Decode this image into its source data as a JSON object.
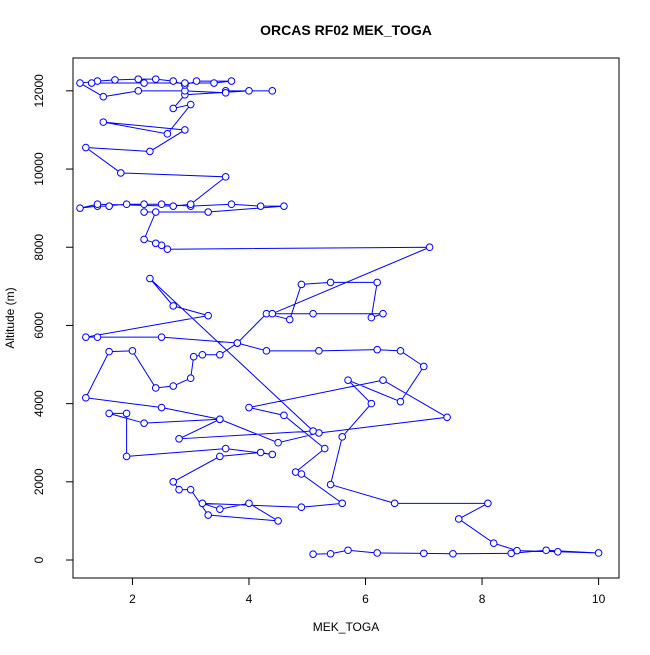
{
  "chart_data": {
    "type": "line",
    "markers": true,
    "title": "ORCAS RF02 MEK_TOGA",
    "xlabel": "MEK_TOGA",
    "ylabel": "Altitude (m)",
    "color": "#0000ff",
    "x": [
      5.1,
      5.4,
      5.7,
      6.2,
      7.0,
      7.5,
      8.5,
      9.1,
      10.0,
      9.3,
      8.6,
      8.2,
      7.6,
      8.1,
      6.5,
      5.4,
      5.6,
      6.1,
      5.7,
      6.6,
      7.0,
      6.6,
      6.2,
      5.2,
      4.3,
      3.8,
      3.5,
      3.2,
      3.05,
      3.0,
      2.7,
      2.4,
      2.0,
      1.6,
      1.2,
      2.5,
      3.5,
      4.5,
      5.2,
      7.4,
      6.3,
      4.0,
      4.6,
      5.3,
      4.8,
      4.9,
      5.6,
      4.9,
      3.2,
      3.5,
      4.0,
      4.5,
      3.3,
      3.0,
      2.8,
      2.7,
      3.5,
      4.2,
      4.4,
      3.6,
      1.9,
      1.9,
      1.6,
      2.2,
      3.5,
      2.8,
      5.1,
      2.3,
      2.7,
      3.3,
      1.2,
      1.4,
      2.5,
      3.8,
      4.3,
      4.7,
      4.9,
      5.4,
      6.2,
      6.1,
      6.3,
      5.1,
      4.4,
      7.1,
      2.6,
      2.5,
      2.4,
      2.2,
      2.4,
      2.2,
      3.3,
      4.6,
      4.2,
      3.7,
      3.0,
      2.5,
      2.2,
      1.9,
      1.6,
      1.4,
      1.1,
      1.4,
      2.7,
      3.0,
      3.6,
      1.8,
      1.2,
      2.3,
      2.9,
      1.5,
      2.6,
      3.0,
      2.7,
      2.9,
      4.0,
      4.4,
      3.6,
      3.6,
      2.9,
      2.1,
      1.5,
      1.1,
      1.4,
      1.7,
      2.1,
      2.4,
      2.7,
      2.9,
      3.1,
      3.7,
      3.4,
      2.9,
      2.2,
      1.3
    ],
    "y": [
      150,
      160,
      250,
      180,
      170,
      160,
      170,
      250,
      180,
      210,
      240,
      430,
      1050,
      1450,
      1450,
      1930,
      3150,
      4000,
      4600,
      4050,
      4950,
      5350,
      5380,
      5350,
      5350,
      5550,
      5250,
      5250,
      5200,
      4650,
      4450,
      4400,
      5350,
      5330,
      4150,
      3900,
      3600,
      3000,
      3250,
      3650,
      4600,
      3900,
      3700,
      2850,
      2250,
      2200,
      1450,
      1350,
      1450,
      1300,
      1450,
      1000,
      1150,
      1800,
      1800,
      2000,
      2650,
      2750,
      2700,
      2850,
      2650,
      3750,
      3750,
      3500,
      3600,
      3100,
      3300,
      7200,
      6500,
      6250,
      5700,
      5700,
      5700,
      5550,
      6300,
      6150,
      7050,
      7100,
      7100,
      6200,
      6300,
      6300,
      6300,
      8000,
      7950,
      8050,
      8100,
      8200,
      8900,
      8900,
      8900,
      9050,
      9050,
      9100,
      9050,
      9100,
      9100,
      9100,
      9050,
      9050,
      9000,
      9100,
      9050,
      9100,
      9800,
      9900,
      10550,
      10450,
      11000,
      11200,
      10900,
      11650,
      11550,
      11900,
      12000,
      12000,
      12000,
      11950,
      12000,
      12000,
      11850,
      12200,
      12250,
      12280,
      12300,
      12300,
      12250,
      12150,
      12250,
      12250,
      12200,
      12200,
      12200,
      12200
    ],
    "xlim": [
      0.98,
      10.35
    ],
    "ylim": [
      -460,
      12840
    ],
    "xticks": [
      2,
      4,
      6,
      8,
      10
    ],
    "yticks": [
      0,
      2000,
      4000,
      6000,
      8000,
      10000,
      12000
    ]
  }
}
